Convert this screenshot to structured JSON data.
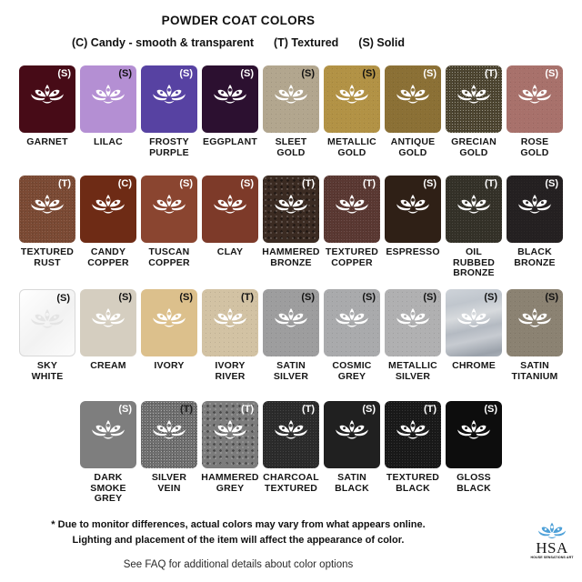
{
  "title": "POWDER COAT COLORS",
  "legend": {
    "candy": "(C) Candy - smooth & transparent",
    "textured": "(T) Textured",
    "solid": "(S) Solid"
  },
  "rows": [
    {
      "swatches": [
        {
          "label": "GARNET",
          "code": "(S)",
          "color": "#470b17",
          "code_color": "#ffffff",
          "lotus_color": "#ffffff",
          "style": "flat"
        },
        {
          "label": "LILAC",
          "code": "(S)",
          "color": "#b48fd3",
          "code_color": "#111111",
          "lotus_color": "#ffffff",
          "style": "flat"
        },
        {
          "label": "FROSTY\nPURPLE",
          "code": "(S)",
          "color": "#5742a2",
          "code_color": "#ffffff",
          "lotus_color": "#ffffff",
          "style": "flat"
        },
        {
          "label": "EGGPLANT",
          "code": "(S)",
          "color": "#2c1030",
          "code_color": "#ffffff",
          "lotus_color": "#ffffff",
          "style": "flat"
        },
        {
          "label": "SLEET GOLD",
          "code": "(S)",
          "color": "#b2a68e",
          "code_color": "#111111",
          "lotus_color": "#ffffff",
          "style": "sparkle"
        },
        {
          "label": "METALLIC\nGOLD",
          "code": "(S)",
          "color": "#b29245",
          "code_color": "#111111",
          "lotus_color": "#ffffff",
          "style": "sparkle"
        },
        {
          "label": "ANTIQUE\nGOLD",
          "code": "(S)",
          "color": "#8b7035",
          "code_color": "#ffffff",
          "lotus_color": "#ffffff",
          "style": "sparkle"
        },
        {
          "label": "GRECIAN\nGOLD",
          "code": "(T)",
          "color": "#4d4530",
          "code_color": "#ffffff",
          "lotus_color": "#ffffff",
          "style": "vein"
        },
        {
          "label": "ROSE GOLD",
          "code": "(S)",
          "color": "#a8716b",
          "code_color": "#ffffff",
          "lotus_color": "#ffffff",
          "style": "sparkle"
        }
      ]
    },
    {
      "swatches": [
        {
          "label": "TEXTURED\nRUST",
          "code": "(T)",
          "color": "#7b4a34",
          "code_color": "#ffffff",
          "lotus_color": "#ffffff",
          "style": "fine"
        },
        {
          "label": "CANDY\nCOPPER",
          "code": "(C)",
          "color": "#6e2b15",
          "code_color": "#ffffff",
          "lotus_color": "#ffffff",
          "style": "flat"
        },
        {
          "label": "TUSCAN\nCOPPER",
          "code": "(S)",
          "color": "#8a4530",
          "code_color": "#ffffff",
          "lotus_color": "#ffffff",
          "style": "flat"
        },
        {
          "label": "CLAY",
          "code": "(S)",
          "color": "#7d3a29",
          "code_color": "#ffffff",
          "lotus_color": "#ffffff",
          "style": "flat"
        },
        {
          "label": "HAMMERED\nBRONZE",
          "code": "(T)",
          "color": "#3b2b22",
          "code_color": "#ffffff",
          "lotus_color": "#ffffff",
          "style": "coarse"
        },
        {
          "label": "TEXTURED\nCOPPER",
          "code": "(T)",
          "color": "#5a3832",
          "code_color": "#ffffff",
          "lotus_color": "#ffffff",
          "style": "fine"
        },
        {
          "label": "ESPRESSO",
          "code": "(S)",
          "color": "#2f2016",
          "code_color": "#ffffff",
          "lotus_color": "#ffffff",
          "style": "flat"
        },
        {
          "label": "OIL RUBBED\nBRONZE",
          "code": "(T)",
          "color": "#343128",
          "code_color": "#ffffff",
          "lotus_color": "#ffffff",
          "style": "fine"
        },
        {
          "label": "BLACK\nBRONZE",
          "code": "(S)",
          "color": "#242021",
          "code_color": "#ffffff",
          "lotus_color": "#ffffff",
          "style": "sparkle"
        }
      ]
    },
    {
      "swatches": [
        {
          "label": "SKY\nWHITE",
          "code": "(S)",
          "color": "#fafafa",
          "code_color": "#111111",
          "lotus_color": "#e4e4e4",
          "style": "bordered"
        },
        {
          "label": "CREAM",
          "code": "(S)",
          "color": "#d5cec0",
          "code_color": "#111111",
          "lotus_color": "#ffffff",
          "style": "flat"
        },
        {
          "label": "IVORY",
          "code": "(S)",
          "color": "#dcc08c",
          "code_color": "#111111",
          "lotus_color": "#ffffff",
          "style": "flat"
        },
        {
          "label": "IVORY\nRIVER",
          "code": "(T)",
          "color": "#d2c2a3",
          "code_color": "#111111",
          "lotus_color": "#ffffff",
          "style": "sparkle"
        },
        {
          "label": "SATIN\nSILVER",
          "code": "(S)",
          "color": "#9d9d9e",
          "code_color": "#111111",
          "lotus_color": "#ffffff",
          "style": "sparkle"
        },
        {
          "label": "COSMIC\nGREY",
          "code": "(S)",
          "color": "#a9aaac",
          "code_color": "#111111",
          "lotus_color": "#ffffff",
          "style": "sparkle"
        },
        {
          "label": "METALLIC\nSILVER",
          "code": "(S)",
          "color": "#b0b0b1",
          "code_color": "#111111",
          "lotus_color": "#ffffff",
          "style": "sparkle"
        },
        {
          "label": "CHROME",
          "code": "(S)",
          "color": "#bcc1c8",
          "code_color": "#111111",
          "lotus_color": "#ffffff",
          "style": "chrome"
        },
        {
          "label": "SATIN\nTITANIUM",
          "code": "(S)",
          "color": "#8b8272",
          "code_color": "#111111",
          "lotus_color": "#ffffff",
          "style": "sparkle"
        }
      ]
    },
    {
      "swatches": [
        {
          "label": "DARK SMOKE\nGREY",
          "code": "(S)",
          "color": "#7e7e7e",
          "code_color": "#ffffff",
          "lotus_color": "#ffffff",
          "style": "flat"
        },
        {
          "label": "SILVER\nVEIN",
          "code": "(T)",
          "color": "#6f6f6f",
          "code_color": "#1c1c1c",
          "lotus_color": "#ffffff",
          "style": "vein"
        },
        {
          "label": "HAMMERED\nGREY",
          "code": "(T)",
          "color": "#7c7c7c",
          "code_color": "#ffffff",
          "lotus_color": "#ffffff",
          "style": "coarse"
        },
        {
          "label": "CHARCOAL\nTEXTURED",
          "code": "(T)",
          "color": "#2b2b2b",
          "code_color": "#ffffff",
          "lotus_color": "#ffffff",
          "style": "fine"
        },
        {
          "label": "SATIN\nBLACK",
          "code": "(S)",
          "color": "#202020",
          "code_color": "#ffffff",
          "lotus_color": "#ffffff",
          "style": "flat"
        },
        {
          "label": "TEXTURED\nBLACK",
          "code": "(T)",
          "color": "#191919",
          "code_color": "#ffffff",
          "lotus_color": "#ffffff",
          "style": "fine"
        },
        {
          "label": "GLOSS\nBLACK",
          "code": "(S)",
          "color": "#0d0d0d",
          "code_color": "#ffffff",
          "lotus_color": "#ffffff",
          "style": "flat"
        }
      ]
    }
  ],
  "footer": {
    "disclaimer_line1": "* Due to monitor differences, actual colors may vary from what appears online.",
    "disclaimer_line2": "Lighting and placement of the item will affect the appearance of color.",
    "faq": "See FAQ for additional details about color options"
  },
  "logo": {
    "abbr": "HSA",
    "name": "HOUSE SENSATIONS ART",
    "accent_color": "#4da0d8"
  }
}
